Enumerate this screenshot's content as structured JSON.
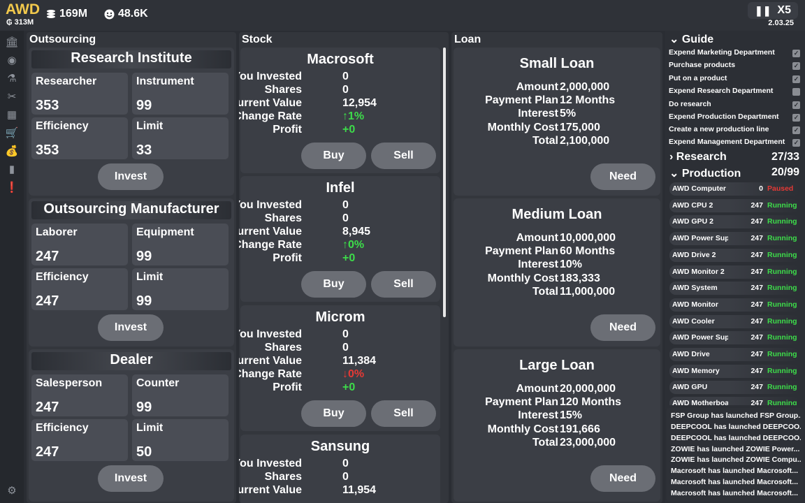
{
  "topbar": {
    "brand": "AWD",
    "brand_sub": "313M",
    "money": "169M",
    "fans": "48.6K",
    "speed": "X5",
    "date": "2.03.25"
  },
  "columns": {
    "outsourcing": "Outsourcing",
    "stock": "Stock",
    "loan": "Loan"
  },
  "outsourcing": [
    {
      "title": "Research Institute",
      "c1": "Researcher",
      "v1": "353",
      "c2": "Instrument",
      "v2": "99",
      "c3": "Efficiency",
      "v3": "353",
      "c4": "Limit",
      "v4": "33",
      "button": "Invest"
    },
    {
      "title": "Outsourcing Manufacturer",
      "c1": "Laborer",
      "v1": "247",
      "c2": "Equipment",
      "v2": "99",
      "c3": "Efficiency",
      "v3": "247",
      "c4": "Limit",
      "v4": "99",
      "button": "Invest"
    },
    {
      "title": "Dealer",
      "c1": "Salesperson",
      "v1": "247",
      "c2": "Counter",
      "v2": "99",
      "c3": "Efficiency",
      "v3": "247",
      "c4": "Limit",
      "v4": "50",
      "button": "Invest"
    }
  ],
  "stock_labels": {
    "invested": "You Invested",
    "shares": "Shares",
    "current": "Current Value",
    "change": "Change Rate",
    "profit": "Profit",
    "buy": "Buy",
    "sell": "Sell"
  },
  "stocks": [
    {
      "name": "Macrosoft",
      "invested": "0",
      "shares": "0",
      "current": "12,954",
      "change": "↑1%",
      "profit": "+0"
    },
    {
      "name": "Infel",
      "invested": "0",
      "shares": "0",
      "current": "8,945",
      "change": "↑0%",
      "profit": "+0"
    },
    {
      "name": "Microm",
      "invested": "0",
      "shares": "0",
      "current": "11,384",
      "change": "↓0%",
      "profit": "+0"
    },
    {
      "name": "Sansung",
      "invested": "0",
      "shares": "0",
      "current": "11,954"
    }
  ],
  "loan_labels": {
    "amount": "Amount",
    "plan": "Payment Plan",
    "interest": "Interest",
    "monthly": "Monthly Cost",
    "total": "Total",
    "need": "Need"
  },
  "loans": [
    {
      "name": "Small Loan",
      "amount": "2,000,000",
      "plan": "12 Months",
      "interest": "5%",
      "monthly": "175,000",
      "total": "2,100,000"
    },
    {
      "name": "Medium Loan",
      "amount": "10,000,000",
      "plan": "60 Months",
      "interest": "10%",
      "monthly": "183,333",
      "total": "11,000,000"
    },
    {
      "name": "Large Loan",
      "amount": "20,000,000",
      "plan": "120 Months",
      "interest": "15%",
      "monthly": "191,666",
      "total": "23,000,000"
    }
  ],
  "guide": {
    "title": "Guide",
    "items": [
      "Expend Marketing Department",
      "Purchase products",
      "Put on a product",
      "Expend Research Department",
      "Do research",
      "Expend Production Department",
      "Create a new production line",
      "Expend Management Department"
    ]
  },
  "research": {
    "label": "Research",
    "count": "27/33"
  },
  "production": {
    "label": "Production",
    "count": "20/99",
    "lines": [
      {
        "name": "AWD Computer",
        "count": "0",
        "status": "Paused"
      },
      {
        "name": "AWD CPU 2",
        "count": "247",
        "status": "Running"
      },
      {
        "name": "AWD GPU 2",
        "count": "247",
        "status": "Running"
      },
      {
        "name": "AWD Power Suppl...",
        "count": "247",
        "status": "Running"
      },
      {
        "name": "AWD Drive 2",
        "count": "247",
        "status": "Running"
      },
      {
        "name": "AWD Monitor 2",
        "count": "247",
        "status": "Running"
      },
      {
        "name": "AWD System",
        "count": "247",
        "status": "Running"
      },
      {
        "name": "AWD Monitor",
        "count": "247",
        "status": "Running"
      },
      {
        "name": "AWD Cooler",
        "count": "247",
        "status": "Running"
      },
      {
        "name": "AWD Power Supply",
        "count": "247",
        "status": "Running"
      },
      {
        "name": "AWD Drive",
        "count": "247",
        "status": "Running"
      },
      {
        "name": "AWD Memory",
        "count": "247",
        "status": "Running"
      },
      {
        "name": "AWD GPU",
        "count": "247",
        "status": "Running"
      },
      {
        "name": "AWD Motherboard",
        "count": "247",
        "status": "Running"
      }
    ]
  },
  "news": [
    "FSP Group has launched FSP Group...",
    "DEEPCOOL has launched DEEPCOO...",
    "DEEPCOOL has launched DEEPCOO...",
    "ZOWIE has launched ZOWIE Power...",
    "ZOWIE has launched ZOWIE Compu...",
    "Macrosoft has launched Macrosoft...",
    "Macrosoft has launched Macrosoft...",
    "Macrosoft has launched Macrosoft..."
  ]
}
